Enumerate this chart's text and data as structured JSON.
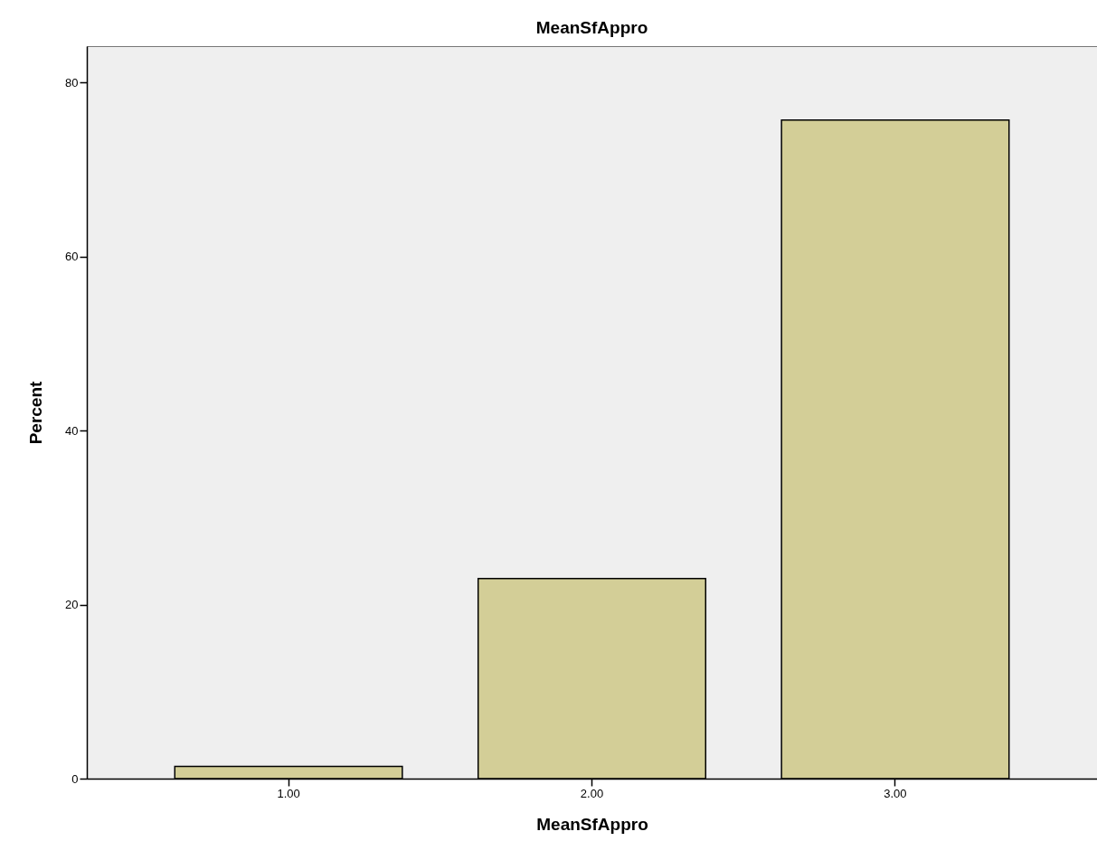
{
  "chart_data": {
    "type": "bar",
    "title": "MeanSfAppro",
    "xlabel": "MeanSfAppro",
    "ylabel": "Percent",
    "categories": [
      "1.00",
      "2.00",
      "3.00"
    ],
    "values": [
      1.4,
      23.0,
      75.7
    ],
    "color": "#d3ce97",
    "ylim": [
      0,
      84.2
    ],
    "yticks": [
      0,
      20,
      40,
      60,
      80
    ],
    "grid": false
  }
}
